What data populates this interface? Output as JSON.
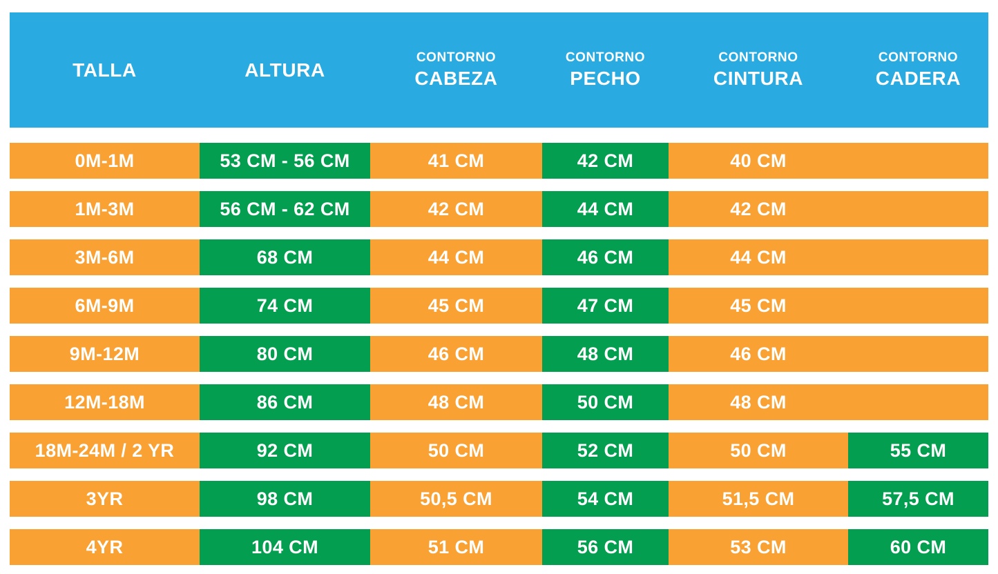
{
  "chart_data": {
    "type": "table",
    "columns": [
      {
        "top": "",
        "main": "TALLA"
      },
      {
        "top": "",
        "main": "ALTURA"
      },
      {
        "top": "CONTORNO",
        "main": "CABEZA"
      },
      {
        "top": "CONTORNO",
        "main": "PECHO"
      },
      {
        "top": "CONTORNO",
        "main": "CINTURA"
      },
      {
        "top": "CONTORNO",
        "main": "CADERA"
      }
    ],
    "rows": [
      [
        "0M-1M",
        "53 CM - 56 CM",
        "41 CM",
        "42 CM",
        "40 CM",
        ""
      ],
      [
        "1M-3M",
        "56 CM - 62 CM",
        "42 CM",
        "44 CM",
        "42 CM",
        ""
      ],
      [
        "3M-6M",
        "68 CM",
        "44 CM",
        "46 CM",
        "44 CM",
        ""
      ],
      [
        "6M-9M",
        "74 CM",
        "45 CM",
        "47 CM",
        "45 CM",
        ""
      ],
      [
        "9M-12M",
        "80 CM",
        "46 CM",
        "48 CM",
        "46 CM",
        ""
      ],
      [
        "12M-18M",
        "86 CM",
        "48 CM",
        "50 CM",
        "48 CM",
        ""
      ],
      [
        "18M-24M / 2 YR",
        "92 CM",
        "50 CM",
        "52 CM",
        "50 CM",
        "55 CM"
      ],
      [
        "3YR",
        "98 CM",
        "50,5 CM",
        "54 CM",
        "51,5 CM",
        "57,5 CM"
      ],
      [
        "4YR",
        "104 CM",
        "51 CM",
        "56 CM",
        "53 CM",
        "60 CM"
      ]
    ],
    "layout_hints": {
      "header_style": "solid blue band",
      "value_highlight": "altura and pecho cells green; cadera green only for last three sizes",
      "grid": "rows separated by white gaps, no cell borders"
    }
  },
  "colors": {
    "header_blue": "#29ABE2",
    "cell_orange": "#F9A133",
    "cell_green": "#039E4F",
    "text_white": "#FFFFFF",
    "background": "#FFFFFF"
  }
}
